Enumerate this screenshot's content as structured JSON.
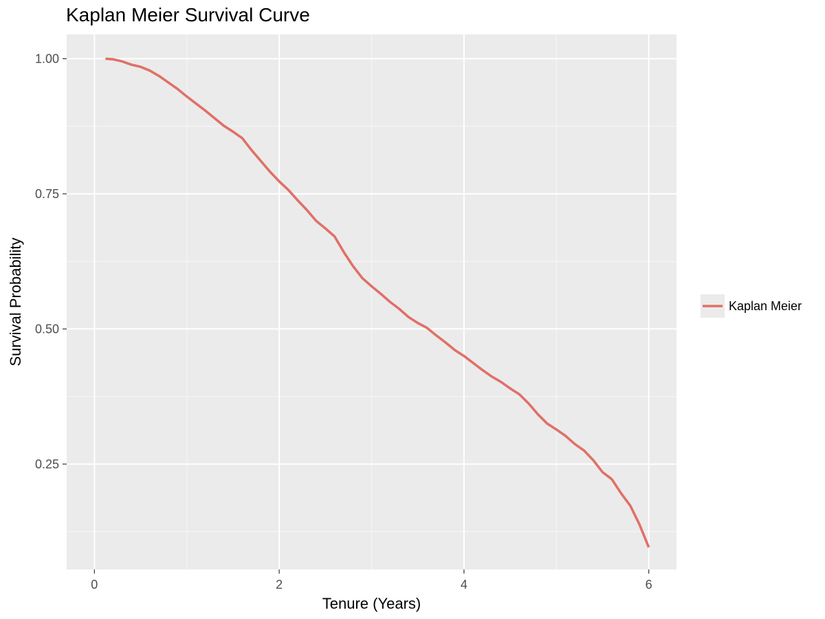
{
  "title": "Kaplan Meier Survival Curve",
  "colors": {
    "panel_background": "#ebebeb",
    "grid_major": "#ffffff",
    "grid_minor": "#f5f5f5",
    "series": "#e07068",
    "tick_text": "#4d4d4d",
    "tick_mark": "#333333"
  },
  "chart_data": {
    "type": "line",
    "title": "Kaplan Meier Survival Curve",
    "xlabel": "Tenure (Years)",
    "ylabel": "Survival Probability",
    "xlim": [
      -0.3,
      6.3
    ],
    "ylim": [
      0.055,
      1.045
    ],
    "x_ticks": [
      0,
      2,
      4,
      6
    ],
    "x_tick_labels": [
      "0",
      "2",
      "4",
      "6"
    ],
    "y_ticks": [
      0.25,
      0.5,
      0.75,
      1.0
    ],
    "y_tick_labels": [
      "0.25",
      "0.50",
      "0.75",
      "1.00"
    ],
    "grid": true,
    "legend_position": "right",
    "series": [
      {
        "name": "Kaplan Meier",
        "x": [
          0.12,
          0.2,
          0.3,
          0.4,
          0.5,
          0.6,
          0.7,
          0.8,
          0.9,
          1.0,
          1.1,
          1.2,
          1.3,
          1.4,
          1.5,
          1.6,
          1.7,
          1.8,
          1.9,
          2.0,
          2.1,
          2.2,
          2.3,
          2.4,
          2.5,
          2.6,
          2.7,
          2.8,
          2.9,
          3.0,
          3.1,
          3.2,
          3.3,
          3.4,
          3.5,
          3.6,
          3.7,
          3.8,
          3.9,
          4.0,
          4.1,
          4.2,
          4.3,
          4.4,
          4.5,
          4.6,
          4.7,
          4.8,
          4.9,
          5.0,
          5.1,
          5.2,
          5.3,
          5.4,
          5.5,
          5.6,
          5.7,
          5.8,
          5.9,
          6.0
        ],
        "y": [
          1.0,
          0.999,
          0.995,
          0.989,
          0.985,
          0.978,
          0.968,
          0.956,
          0.944,
          0.93,
          0.917,
          0.904,
          0.89,
          0.876,
          0.865,
          0.853,
          0.831,
          0.811,
          0.791,
          0.773,
          0.757,
          0.738,
          0.72,
          0.7,
          0.686,
          0.671,
          0.642,
          0.616,
          0.594,
          0.579,
          0.565,
          0.55,
          0.537,
          0.522,
          0.511,
          0.502,
          0.488,
          0.475,
          0.461,
          0.45,
          0.437,
          0.424,
          0.412,
          0.402,
          0.39,
          0.379,
          0.362,
          0.342,
          0.325,
          0.314,
          0.302,
          0.287,
          0.275,
          0.257,
          0.235,
          0.222,
          0.196,
          0.173,
          0.138,
          0.096
        ]
      }
    ]
  }
}
